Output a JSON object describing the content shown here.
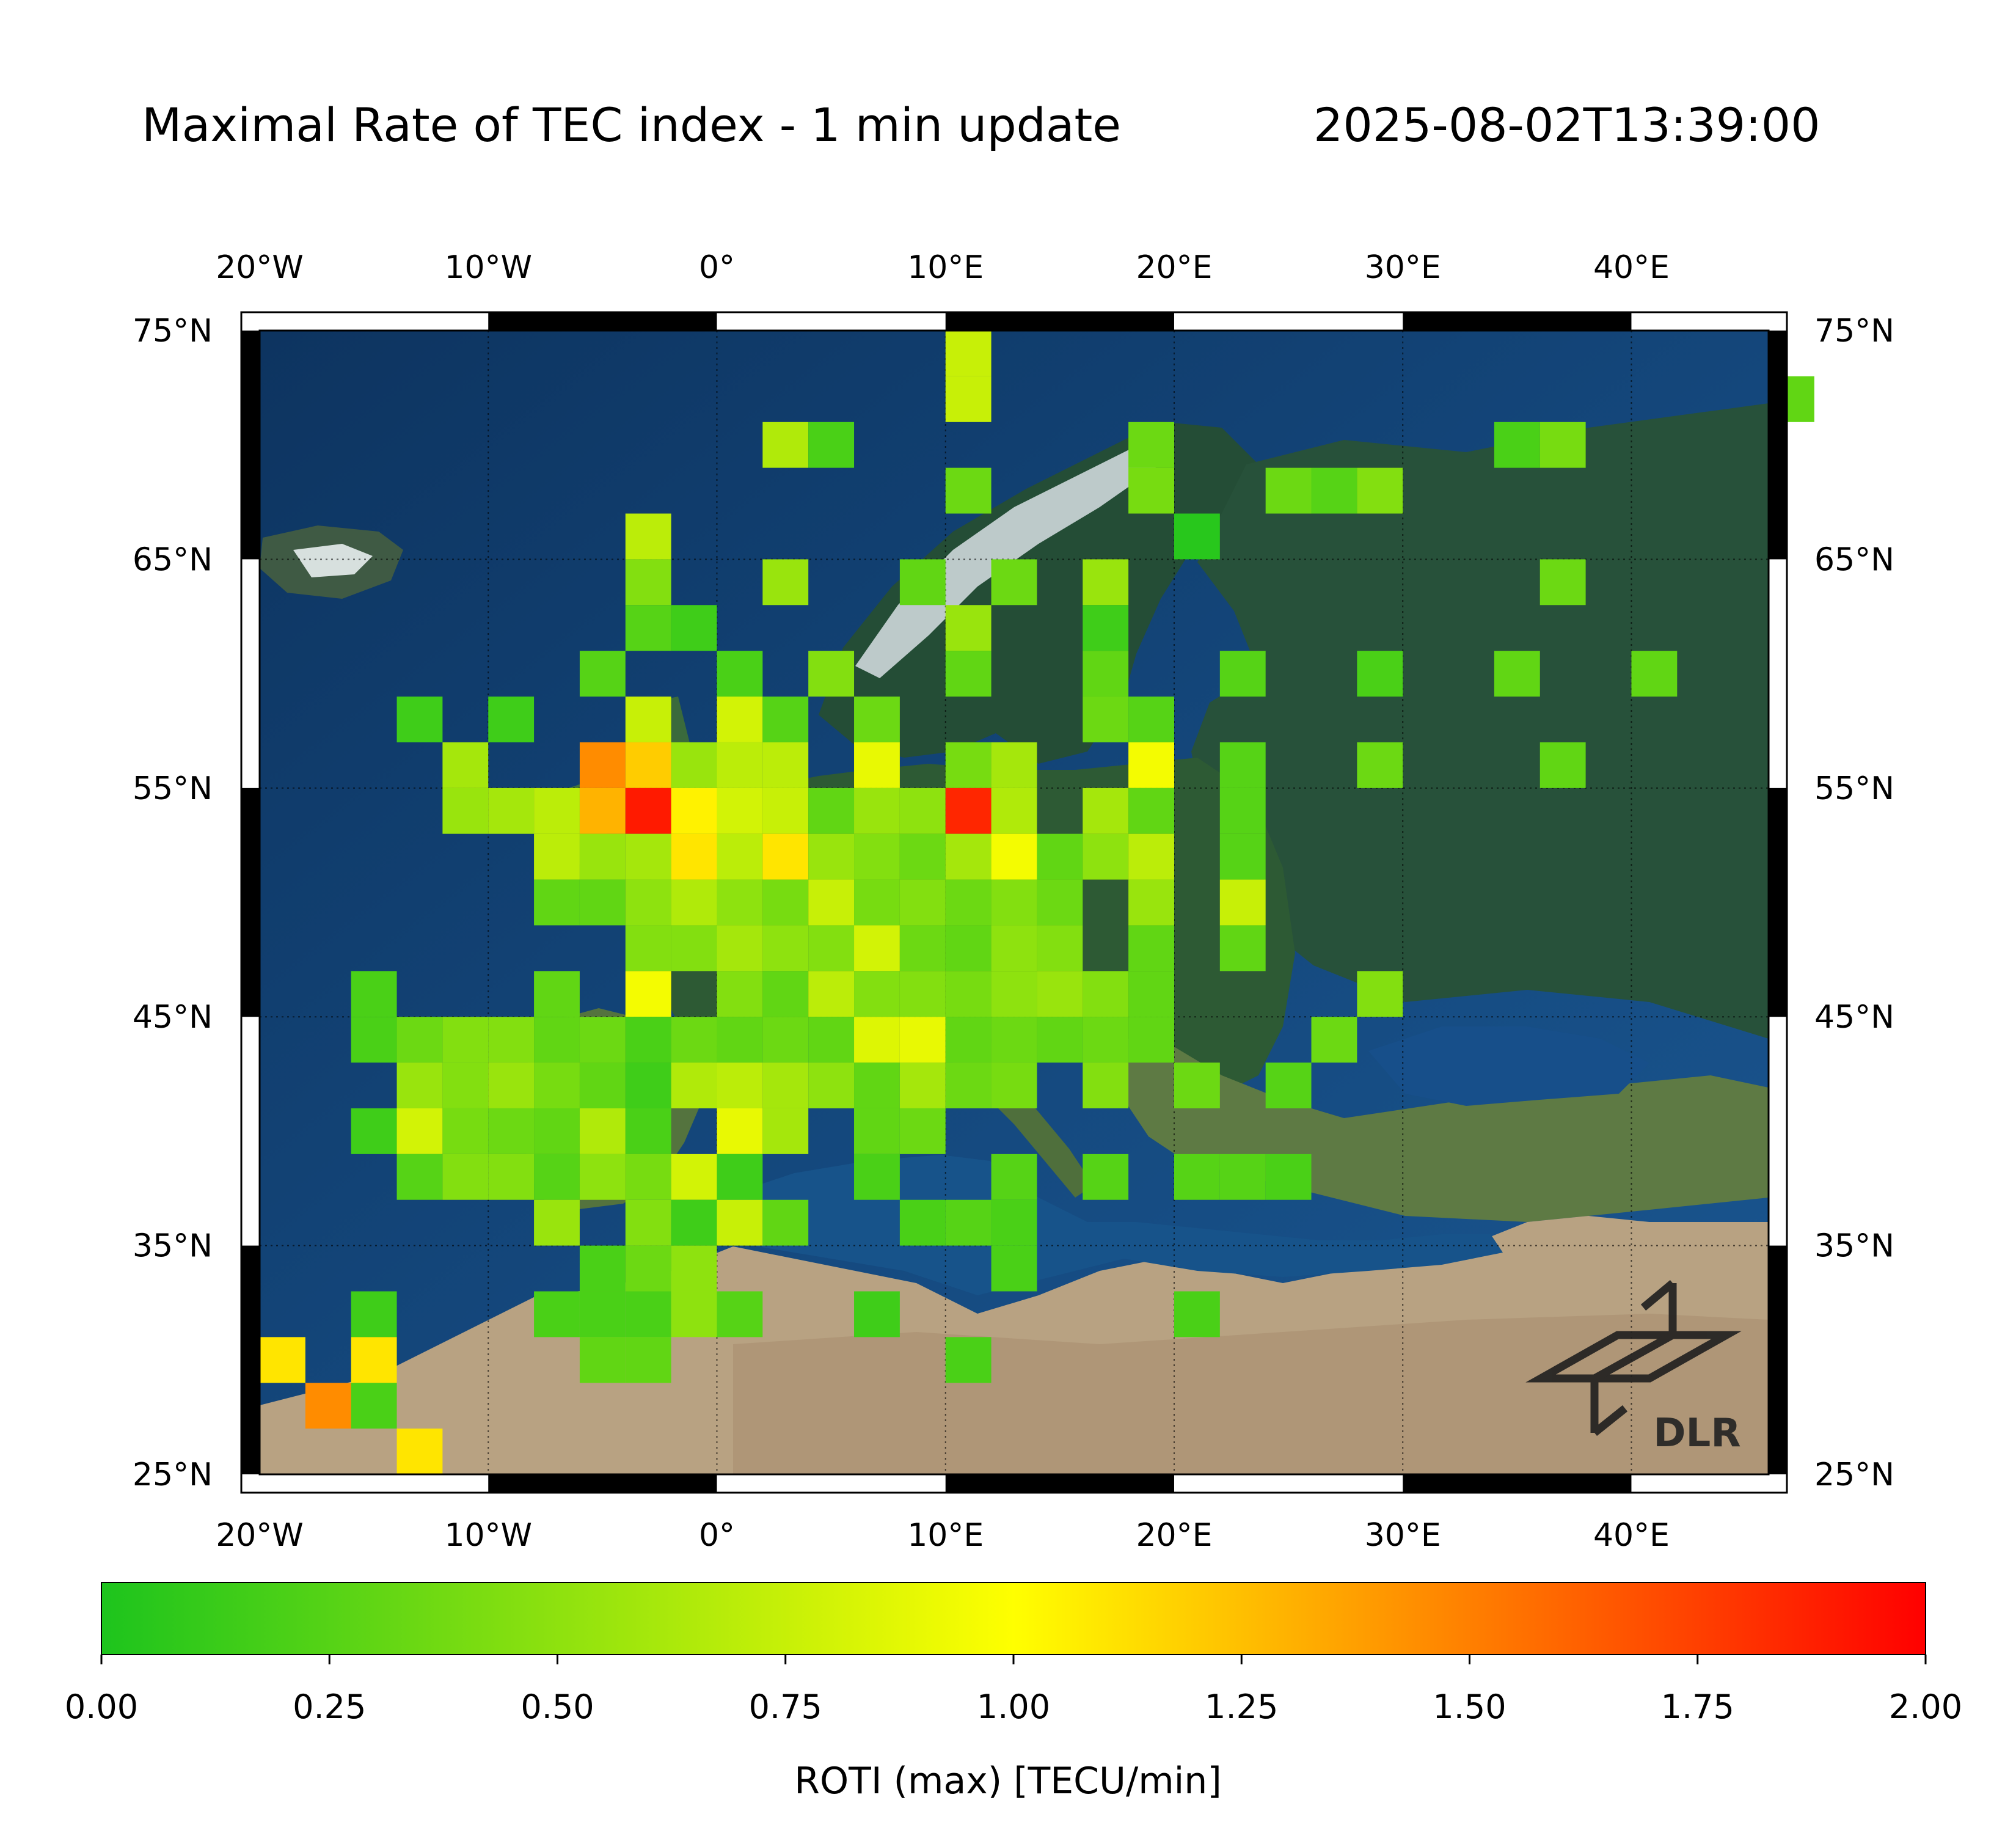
{
  "title": "Maximal Rate of TEC index - 1 min update",
  "timestamp": "2025-08-02T13:39:00",
  "logo_text": "DLR",
  "map": {
    "lon_ticks": [
      "20°W",
      "10°W",
      "0°",
      "10°E",
      "20°E",
      "30°E",
      "40°E"
    ],
    "lon_values": [
      -20,
      -10,
      0,
      10,
      20,
      30,
      40
    ],
    "lat_ticks": [
      "75°N",
      "65°N",
      "55°N",
      "45°N",
      "35°N",
      "25°N"
    ],
    "lat_values": [
      75,
      65,
      55,
      45,
      35,
      25
    ],
    "extent": {
      "lon": [
        -20,
        46
      ],
      "lat": [
        25,
        75
      ]
    },
    "cell_size_deg": 2,
    "cells": [
      [
        10,
        71,
        0.75
      ],
      [
        10,
        73,
        0.75
      ],
      [
        46,
        71,
        0.3
      ],
      [
        2,
        69,
        0.65
      ],
      [
        4,
        69,
        0.2
      ],
      [
        18,
        69,
        0.35
      ],
      [
        34,
        69,
        0.2
      ],
      [
        36,
        69,
        0.4
      ],
      [
        10,
        67,
        0.35
      ],
      [
        18,
        67,
        0.4
      ],
      [
        24,
        67,
        0.35
      ],
      [
        26,
        67,
        0.25
      ],
      [
        28,
        67,
        0.45
      ],
      [
        -4,
        65,
        0.7
      ],
      [
        20,
        65,
        0.05
      ],
      [
        -4,
        63,
        0.45
      ],
      [
        2,
        63,
        0.55
      ],
      [
        8,
        63,
        0.3
      ],
      [
        12,
        63,
        0.35
      ],
      [
        16,
        63,
        0.55
      ],
      [
        36,
        63,
        0.35
      ],
      [
        -4,
        61,
        0.25
      ],
      [
        -2,
        61,
        0.15
      ],
      [
        10,
        61,
        0.55
      ],
      [
        16,
        61,
        0.15
      ],
      [
        -6,
        59,
        0.25
      ],
      [
        0,
        59,
        0.2
      ],
      [
        4,
        59,
        0.45
      ],
      [
        10,
        59,
        0.3
      ],
      [
        16,
        59,
        0.3
      ],
      [
        22,
        59,
        0.25
      ],
      [
        28,
        59,
        0.2
      ],
      [
        34,
        59,
        0.3
      ],
      [
        40,
        59,
        0.3
      ],
      [
        -14,
        57,
        0.15
      ],
      [
        -10,
        57,
        0.15
      ],
      [
        -4,
        57,
        0.75
      ],
      [
        0,
        57,
        0.8
      ],
      [
        2,
        57,
        0.25
      ],
      [
        6,
        57,
        0.35
      ],
      [
        16,
        57,
        0.35
      ],
      [
        18,
        57,
        0.25
      ],
      [
        -12,
        55,
        0.6
      ],
      [
        -6,
        55,
        1.45
      ],
      [
        -4,
        55,
        1.2
      ],
      [
        -2,
        55,
        0.55
      ],
      [
        0,
        55,
        0.7
      ],
      [
        2,
        55,
        0.7
      ],
      [
        6,
        55,
        0.9
      ],
      [
        10,
        55,
        0.4
      ],
      [
        12,
        55,
        0.6
      ],
      [
        18,
        55,
        0.95
      ],
      [
        22,
        55,
        0.25
      ],
      [
        28,
        55,
        0.35
      ],
      [
        36,
        55,
        0.3
      ],
      [
        -12,
        53,
        0.55
      ],
      [
        -10,
        53,
        0.6
      ],
      [
        -8,
        53,
        0.7
      ],
      [
        -6,
        53,
        1.3
      ],
      [
        -4,
        53,
        1.9
      ],
      [
        -2,
        53,
        1.05
      ],
      [
        0,
        53,
        0.8
      ],
      [
        2,
        53,
        0.75
      ],
      [
        4,
        53,
        0.3
      ],
      [
        6,
        53,
        0.55
      ],
      [
        8,
        53,
        0.5
      ],
      [
        10,
        53,
        1.85
      ],
      [
        12,
        53,
        0.65
      ],
      [
        16,
        53,
        0.6
      ],
      [
        18,
        53,
        0.3
      ],
      [
        22,
        53,
        0.25
      ],
      [
        -8,
        51,
        0.7
      ],
      [
        -6,
        51,
        0.55
      ],
      [
        -4,
        51,
        0.6
      ],
      [
        -2,
        51,
        1.1
      ],
      [
        0,
        51,
        0.7
      ],
      [
        2,
        51,
        1.1
      ],
      [
        4,
        51,
        0.55
      ],
      [
        6,
        51,
        0.45
      ],
      [
        8,
        51,
        0.35
      ],
      [
        10,
        51,
        0.6
      ],
      [
        12,
        51,
        0.95
      ],
      [
        14,
        51,
        0.3
      ],
      [
        16,
        51,
        0.5
      ],
      [
        18,
        51,
        0.7
      ],
      [
        22,
        51,
        0.25
      ],
      [
        -8,
        49,
        0.3
      ],
      [
        -6,
        49,
        0.3
      ],
      [
        -4,
        49,
        0.5
      ],
      [
        -2,
        49,
        0.65
      ],
      [
        0,
        49,
        0.5
      ],
      [
        2,
        49,
        0.4
      ],
      [
        4,
        49,
        0.75
      ],
      [
        6,
        49,
        0.4
      ],
      [
        8,
        49,
        0.45
      ],
      [
        10,
        49,
        0.35
      ],
      [
        12,
        49,
        0.45
      ],
      [
        14,
        49,
        0.35
      ],
      [
        18,
        49,
        0.55
      ],
      [
        22,
        49,
        0.75
      ],
      [
        -4,
        47,
        0.45
      ],
      [
        -2,
        47,
        0.45
      ],
      [
        0,
        47,
        0.6
      ],
      [
        2,
        47,
        0.5
      ],
      [
        4,
        47,
        0.45
      ],
      [
        6,
        47,
        0.8
      ],
      [
        8,
        47,
        0.35
      ],
      [
        10,
        47,
        0.3
      ],
      [
        12,
        47,
        0.5
      ],
      [
        14,
        47,
        0.45
      ],
      [
        18,
        47,
        0.3
      ],
      [
        22,
        47,
        0.3
      ],
      [
        -16,
        45,
        0.2
      ],
      [
        -8,
        45,
        0.3
      ],
      [
        -4,
        45,
        0.95
      ],
      [
        0,
        45,
        0.45
      ],
      [
        2,
        45,
        0.3
      ],
      [
        4,
        45,
        0.7
      ],
      [
        6,
        45,
        0.45
      ],
      [
        8,
        45,
        0.45
      ],
      [
        10,
        45,
        0.4
      ],
      [
        12,
        45,
        0.5
      ],
      [
        14,
        45,
        0.55
      ],
      [
        16,
        45,
        0.45
      ],
      [
        18,
        45,
        0.3
      ],
      [
        28,
        45,
        0.45
      ],
      [
        -16,
        43,
        0.2
      ],
      [
        -14,
        43,
        0.35
      ],
      [
        -12,
        43,
        0.45
      ],
      [
        -10,
        43,
        0.45
      ],
      [
        -8,
        43,
        0.3
      ],
      [
        -6,
        43,
        0.35
      ],
      [
        -4,
        43,
        0.2
      ],
      [
        -2,
        43,
        0.35
      ],
      [
        0,
        43,
        0.3
      ],
      [
        2,
        43,
        0.35
      ],
      [
        4,
        43,
        0.3
      ],
      [
        6,
        43,
        0.85
      ],
      [
        8,
        43,
        0.9
      ],
      [
        10,
        43,
        0.3
      ],
      [
        12,
        43,
        0.35
      ],
      [
        14,
        43,
        0.3
      ],
      [
        16,
        43,
        0.35
      ],
      [
        18,
        43,
        0.3
      ],
      [
        26,
        43,
        0.35
      ],
      [
        -14,
        41,
        0.55
      ],
      [
        -12,
        41,
        0.45
      ],
      [
        -10,
        41,
        0.55
      ],
      [
        -8,
        41,
        0.4
      ],
      [
        -6,
        41,
        0.3
      ],
      [
        -4,
        41,
        0.15
      ],
      [
        -2,
        41,
        0.65
      ],
      [
        0,
        41,
        0.7
      ],
      [
        2,
        41,
        0.6
      ],
      [
        4,
        41,
        0.5
      ],
      [
        6,
        41,
        0.3
      ],
      [
        8,
        41,
        0.6
      ],
      [
        10,
        41,
        0.35
      ],
      [
        12,
        41,
        0.4
      ],
      [
        16,
        41,
        0.45
      ],
      [
        20,
        41,
        0.35
      ],
      [
        24,
        41,
        0.25
      ],
      [
        -16,
        39,
        0.15
      ],
      [
        -14,
        39,
        0.8
      ],
      [
        -12,
        39,
        0.4
      ],
      [
        -10,
        39,
        0.35
      ],
      [
        -8,
        39,
        0.3
      ],
      [
        -6,
        39,
        0.65
      ],
      [
        -4,
        39,
        0.2
      ],
      [
        0,
        39,
        0.9
      ],
      [
        2,
        39,
        0.6
      ],
      [
        6,
        39,
        0.3
      ],
      [
        8,
        39,
        0.35
      ],
      [
        -14,
        37,
        0.25
      ],
      [
        -12,
        37,
        0.45
      ],
      [
        -10,
        37,
        0.45
      ],
      [
        -8,
        37,
        0.25
      ],
      [
        -6,
        37,
        0.5
      ],
      [
        -4,
        37,
        0.4
      ],
      [
        -2,
        37,
        0.8
      ],
      [
        0,
        37,
        0.15
      ],
      [
        6,
        37,
        0.2
      ],
      [
        12,
        37,
        0.25
      ],
      [
        16,
        37,
        0.25
      ],
      [
        20,
        37,
        0.25
      ],
      [
        22,
        37,
        0.25
      ],
      [
        24,
        37,
        0.2
      ],
      [
        -8,
        35,
        0.55
      ],
      [
        -4,
        35,
        0.45
      ],
      [
        -2,
        35,
        0.15
      ],
      [
        0,
        35,
        0.75
      ],
      [
        2,
        35,
        0.3
      ],
      [
        8,
        35,
        0.2
      ],
      [
        10,
        35,
        0.25
      ],
      [
        12,
        35,
        0.2
      ],
      [
        -6,
        33,
        0.2
      ],
      [
        -4,
        33,
        0.35
      ],
      [
        -2,
        33,
        0.5
      ],
      [
        12,
        33,
        0.2
      ],
      [
        -16,
        31,
        0.15
      ],
      [
        -8,
        31,
        0.2
      ],
      [
        -6,
        31,
        0.2
      ],
      [
        -4,
        31,
        0.2
      ],
      [
        -2,
        31,
        0.5
      ],
      [
        0,
        31,
        0.25
      ],
      [
        6,
        31,
        0.15
      ],
      [
        20,
        31,
        0.2
      ],
      [
        -20,
        29,
        1.1
      ],
      [
        -16,
        29,
        1.1
      ],
      [
        -6,
        29,
        0.3
      ],
      [
        -4,
        29,
        0.3
      ],
      [
        10,
        29,
        0.2
      ],
      [
        -18,
        27,
        1.45
      ],
      [
        -16,
        27,
        0.2
      ],
      [
        -14,
        25,
        1.1
      ]
    ]
  },
  "colorbar": {
    "label": "ROTI (max) [TECU/min]",
    "min": 0,
    "max": 2,
    "ticks": [
      "0.00",
      "0.25",
      "0.50",
      "0.75",
      "1.00",
      "1.25",
      "1.50",
      "1.75",
      "2.00"
    ],
    "colors": [
      "#1dc41d",
      "#ffff00",
      "#ff0000"
    ]
  },
  "colors": {
    "ocean": "#123f6b",
    "land": "#244d36",
    "desert": "#b8a282"
  }
}
